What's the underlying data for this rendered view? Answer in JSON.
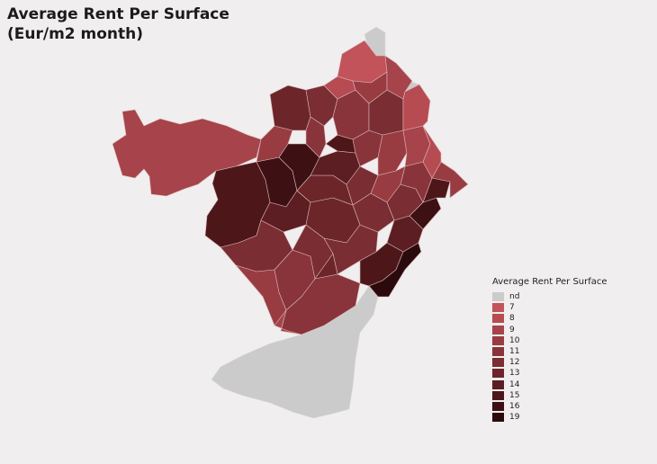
{
  "title": {
    "line1": "Average Rent Per Surface",
    "line2": "(Eur/m2 month)"
  },
  "legend": {
    "title": "Average Rent Per Surface",
    "items": [
      {
        "label": "nd",
        "color": "#cbcbcb"
      },
      {
        "label": "7",
        "color": "#c2535a"
      },
      {
        "label": "8",
        "color": "#b64b52"
      },
      {
        "label": "9",
        "color": "#a7434a"
      },
      {
        "label": "10",
        "color": "#993c42"
      },
      {
        "label": "11",
        "color": "#89343a"
      },
      {
        "label": "12",
        "color": "#7a2d32"
      },
      {
        "label": "13",
        "color": "#6c262a"
      },
      {
        "label": "14",
        "color": "#5c1e22"
      },
      {
        "label": "15",
        "color": "#4d171a"
      },
      {
        "label": "16",
        "color": "#3d1013"
      },
      {
        "label": "19",
        "color": "#2a0a0c"
      }
    ]
  },
  "map": {
    "border_color": "#d9b7b9",
    "background": "#f0eeee"
  }
}
